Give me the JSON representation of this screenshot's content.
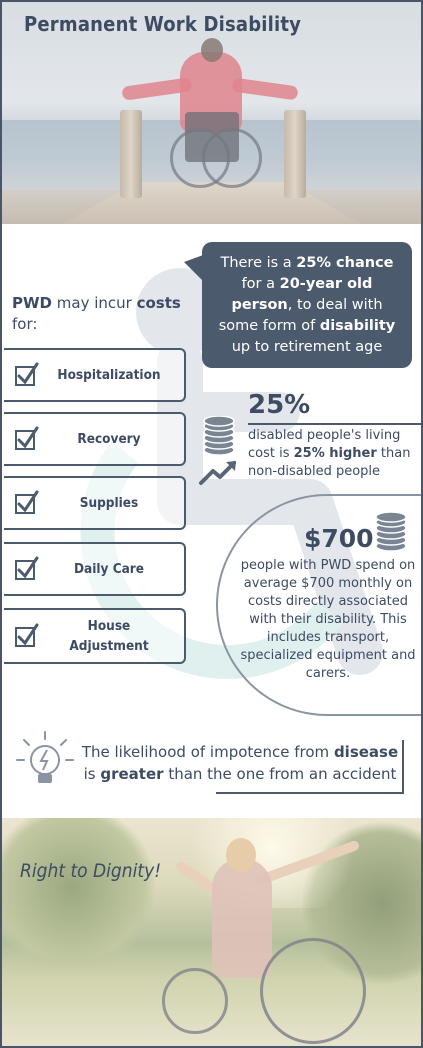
{
  "header": {
    "title": "Permanent Work Disability"
  },
  "bubble": {
    "t1": "There is a ",
    "b1": "25% chance",
    "t2": " for a ",
    "b2": "20-year old person",
    "t3": ", to deal with some form of ",
    "b3": "disability",
    "t4": " up to retirement age"
  },
  "costs": {
    "intro_b1": "PWD",
    "intro_t1": " may incur ",
    "intro_b2": "costs",
    "intro_t2": " for:",
    "items": [
      {
        "label": "Hospitalization"
      },
      {
        "label": "Recovery"
      },
      {
        "label": "Supplies"
      },
      {
        "label": "Daily Care"
      },
      {
        "label": "House Adjustment"
      }
    ]
  },
  "stat_25": {
    "value": "25%",
    "t1": "disabled people's living cost is ",
    "b1": "25% higher",
    "t2": " than non-disabled people"
  },
  "stat_700": {
    "value": "$700",
    "text": "people with PWD spend on average $700 monthly on costs directly associated with their disability. This includes transport, specialized equipment and carers."
  },
  "likelihood": {
    "t1": "The likelihood of impotence from ",
    "b1": "disease",
    "t2": " is ",
    "b2": "greater",
    "t3": " than the one from an accident"
  },
  "footer": {
    "slogan": "Right to Dignity!"
  },
  "colors": {
    "primary": "#4c5a6d",
    "text": "#3d4b63"
  },
  "icons": [
    "check-icon",
    "coins-icon",
    "trend-arrow-icon",
    "lightbulb-icon",
    "wheelchair-symbol-icon"
  ]
}
